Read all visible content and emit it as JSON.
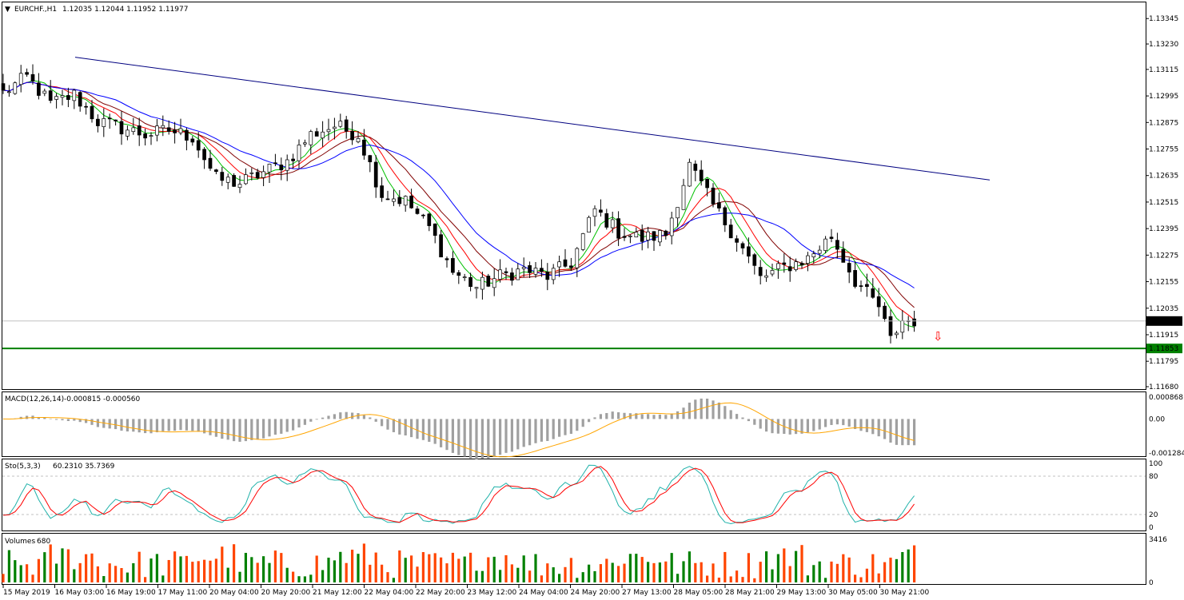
{
  "header": {
    "symbol": "EURCHF.,H1",
    "ohlc": "1.12035 1.12044 1.11952 1.11977"
  },
  "colors": {
    "bull": "#ffffff",
    "bear": "#000000",
    "trendline": "#000080",
    "support": "#008000",
    "ma_fast": "#00c000",
    "ma_mid": "#ff0000",
    "ma_slow": "#800000",
    "ma_long": "#0000ff",
    "macd_hist": "#a0a0a0",
    "macd_signal": "#ffa500",
    "sto_main": "#20b2aa",
    "sto_signal": "#ff0000",
    "vol_up": "#008000",
    "vol_down": "#ff4500",
    "arrow": "#ff0000"
  },
  "chart_data": [
    {
      "type": "candlestick",
      "title": "EURCHF.,H1",
      "ylim": [
        1.1168,
        1.134
      ],
      "y_ticks": [
        "1.13345",
        "1.13230",
        "1.13115",
        "1.12995",
        "1.12875",
        "1.12755",
        "1.12635",
        "1.12515",
        "1.12395",
        "1.12275",
        "1.12155",
        "1.12035",
        "1.11915",
        "1.11795",
        "1.11680"
      ],
      "current_price": "1.11977",
      "support_level": "1.11853",
      "support_value": 1.11853,
      "trendline": [
        [
          0,
          1.1317
        ],
        [
          160,
          1.12615
        ]
      ],
      "x_labels": [
        "15 May 2019",
        "16 May 03:00",
        "16 May 19:00",
        "17 May 11:00",
        "20 May 04:00",
        "20 May 20:00",
        "21 May 12:00",
        "22 May 04:00",
        "22 May 20:00",
        "23 May 12:00",
        "24 May 04:00",
        "24 May 20:00",
        "27 May 13:00",
        "28 May 05:00",
        "28 May 21:00",
        "29 May 13:00",
        "30 May 05:00",
        "30 May 21:00"
      ],
      "close_anchors": [
        [
          0,
          1.1301
        ],
        [
          4,
          1.1308
        ],
        [
          8,
          1.1296
        ],
        [
          12,
          1.13
        ],
        [
          16,
          1.1288
        ],
        [
          20,
          1.1285
        ],
        [
          24,
          1.1282
        ],
        [
          28,
          1.1284
        ],
        [
          32,
          1.1281
        ],
        [
          36,
          1.1262
        ],
        [
          40,
          1.126
        ],
        [
          44,
          1.1265
        ],
        [
          48,
          1.127
        ],
        [
          52,
          1.1282
        ],
        [
          56,
          1.1286
        ],
        [
          60,
          1.1282
        ],
        [
          64,
          1.1255
        ],
        [
          68,
          1.1252
        ],
        [
          72,
          1.124
        ],
        [
          76,
          1.122
        ],
        [
          80,
          1.1213
        ],
        [
          84,
          1.1218
        ],
        [
          88,
          1.1221
        ],
        [
          92,
          1.1218
        ],
        [
          96,
          1.1224
        ],
        [
          100,
          1.1248
        ],
        [
          104,
          1.1238
        ],
        [
          108,
          1.1235
        ],
        [
          112,
          1.1237
        ],
        [
          116,
          1.1268
        ],
        [
          120,
          1.125
        ],
        [
          124,
          1.1235
        ],
        [
          128,
          1.1217
        ],
        [
          132,
          1.1222
        ],
        [
          136,
          1.1226
        ],
        [
          140,
          1.1236
        ],
        [
          144,
          1.1216
        ],
        [
          148,
          1.1204
        ],
        [
          150,
          1.1189
        ],
        [
          152,
          1.1198
        ]
      ]
    },
    {
      "type": "histogram",
      "title": "MACD(12,26,14)",
      "values_label": "-0.000815 -0.000560",
      "ylim": [
        -0.001284,
        0.000868
      ],
      "y_ticks": [
        "0.000868",
        "0.00",
        "-0.001284"
      ]
    },
    {
      "type": "line",
      "title": "Sto(5,3,3)",
      "values_label": "60.2310 35.7369",
      "ylim": [
        0,
        100
      ],
      "y_ticks": [
        "100",
        "80",
        "20",
        "0"
      ],
      "levels": [
        80,
        20
      ]
    },
    {
      "type": "bar",
      "title": "Volumes",
      "values_label": "680",
      "ylim": [
        0,
        3416
      ],
      "y_ticks": [
        "3416",
        "0"
      ]
    }
  ]
}
